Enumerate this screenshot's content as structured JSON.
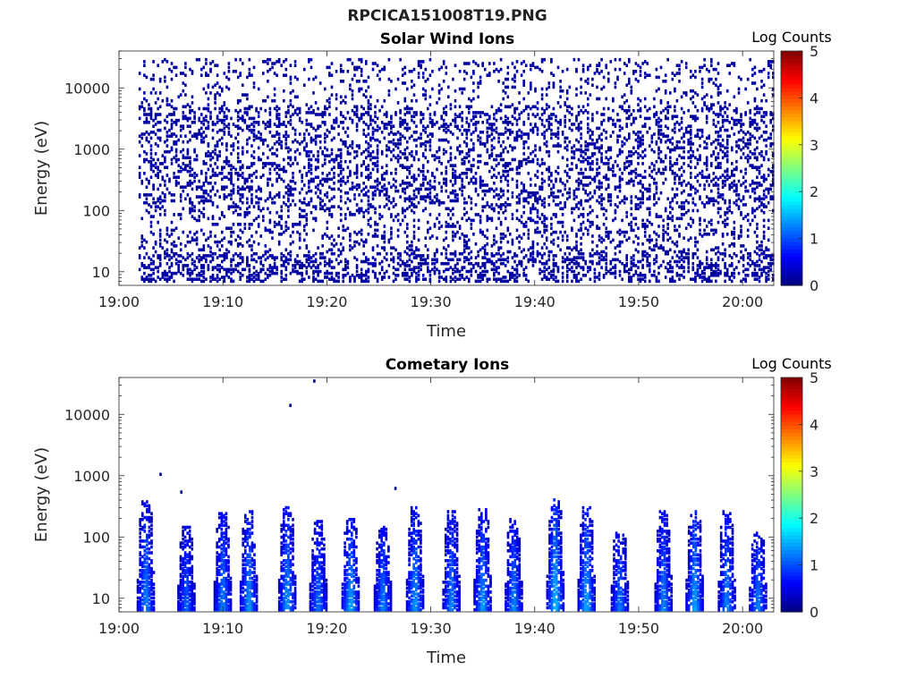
{
  "figure": {
    "title": "RPCICA151008T19.PNG"
  },
  "chart_data": [
    {
      "type": "heatmap",
      "title": "Solar Wind Ions",
      "xlabel": "Time",
      "ylabel": "Energy (eV)",
      "y_scale": "log",
      "ylim": [
        6,
        40000
      ],
      "xlim": [
        "19:00",
        "20:03"
      ],
      "x_ticks": [
        "19:00",
        "19:10",
        "19:20",
        "19:30",
        "19:40",
        "19:50",
        "20:00"
      ],
      "y_ticks": [
        "10",
        "100",
        "1000",
        "10000"
      ],
      "colorbar": {
        "label": "Log Counts",
        "range": [
          0,
          5
        ],
        "ticks": [
          "0",
          "1",
          "2",
          "3",
          "4",
          "5"
        ],
        "colormap": "jet"
      },
      "data_time_range": [
        "19:02",
        "20:03"
      ],
      "data_energy_range_eV": [
        6,
        35000
      ],
      "typical_log_counts": 0.1,
      "description_of_values": "sparse isolated low-count pixels (log counts ~0-0.3) spread across all energies, densest 100-5000 eV"
    },
    {
      "type": "heatmap",
      "title": "Cometary Ions",
      "xlabel": "Time",
      "ylabel": "Energy (eV)",
      "y_scale": "log",
      "ylim": [
        6,
        40000
      ],
      "xlim": [
        "19:00",
        "20:03"
      ],
      "x_ticks": [
        "19:00",
        "19:10",
        "19:20",
        "19:30",
        "19:40",
        "19:50",
        "20:00"
      ],
      "y_ticks": [
        "10",
        "100",
        "1000",
        "10000"
      ],
      "colorbar": {
        "label": "Log Counts",
        "range": [
          0,
          5
        ],
        "ticks": [
          "0",
          "1",
          "2",
          "3",
          "4",
          "5"
        ],
        "colormap": "jet"
      },
      "bursts": [
        {
          "time": "19:02.6",
          "max_eV": 400,
          "peak_log_counts": 1.3
        },
        {
          "time": "19:06.5",
          "max_eV": 150,
          "peak_log_counts": 1.1
        },
        {
          "time": "19:10.0",
          "max_eV": 250,
          "peak_log_counts": 1.3
        },
        {
          "time": "19:12.5",
          "max_eV": 260,
          "peak_log_counts": 1.4
        },
        {
          "time": "19:16.2",
          "max_eV": 300,
          "peak_log_counts": 1.4
        },
        {
          "time": "19:19.2",
          "max_eV": 180,
          "peak_log_counts": 1.2
        },
        {
          "time": "19:22.3",
          "max_eV": 200,
          "peak_log_counts": 1.5
        },
        {
          "time": "19:25.4",
          "max_eV": 150,
          "peak_log_counts": 1.3
        },
        {
          "time": "19:28.5",
          "max_eV": 300,
          "peak_log_counts": 1.4
        },
        {
          "time": "19:32.0",
          "max_eV": 260,
          "peak_log_counts": 1.3
        },
        {
          "time": "19:35.0",
          "max_eV": 280,
          "peak_log_counts": 1.4
        },
        {
          "time": "19:38.0",
          "max_eV": 200,
          "peak_log_counts": 1.3
        },
        {
          "time": "19:42.0",
          "max_eV": 450,
          "peak_log_counts": 1.6
        },
        {
          "time": "19:45.0",
          "max_eV": 300,
          "peak_log_counts": 1.5
        },
        {
          "time": "19:48.2",
          "max_eV": 150,
          "peak_log_counts": 1.2
        },
        {
          "time": "19:52.4",
          "max_eV": 260,
          "peak_log_counts": 1.3
        },
        {
          "time": "19:55.4",
          "max_eV": 280,
          "peak_log_counts": 1.5
        },
        {
          "time": "19:58.5",
          "max_eV": 260,
          "peak_log_counts": 1.3
        },
        {
          "time": "20:01.5",
          "max_eV": 120,
          "peak_log_counts": 1.3
        }
      ],
      "isolated_points": [
        {
          "time": "19:16.5",
          "eV": 14000
        },
        {
          "time": "19:18.8",
          "eV": 35000
        },
        {
          "time": "19:04.0",
          "eV": 1050
        },
        {
          "time": "19:06.0",
          "eV": 540
        },
        {
          "time": "19:26.6",
          "eV": 620
        }
      ]
    }
  ]
}
